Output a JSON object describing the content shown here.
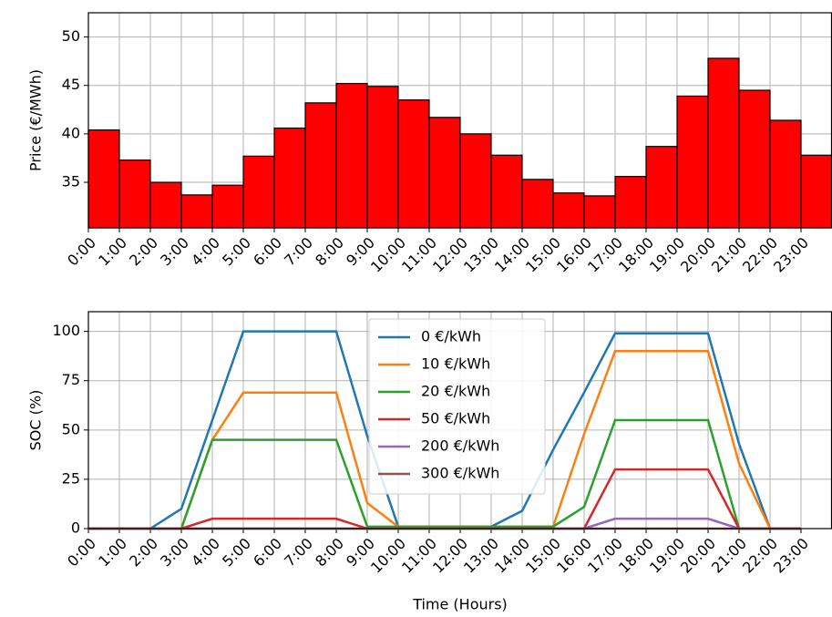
{
  "chart_data": [
    {
      "type": "bar",
      "ylabel": "Price (€/MWh)",
      "categories": [
        "0:00",
        "1:00",
        "2:00",
        "3:00",
        "4:00",
        "5:00",
        "6:00",
        "7:00",
        "8:00",
        "9:00",
        "10:00",
        "11:00",
        "12:00",
        "13:00",
        "14:00",
        "15:00",
        "16:00",
        "17:00",
        "18:00",
        "19:00",
        "20:00",
        "21:00",
        "22:00",
        "23:00"
      ],
      "values": [
        40.4,
        37.3,
        35.0,
        33.7,
        34.7,
        37.7,
        40.6,
        43.2,
        45.2,
        44.9,
        43.5,
        41.7,
        40.0,
        37.8,
        35.3,
        33.9,
        33.6,
        35.6,
        38.7,
        43.9,
        47.8,
        44.5,
        41.4,
        37.8
      ],
      "color": "#ff0000",
      "ylim": [
        30.3,
        52.5
      ],
      "yticks": [
        35,
        40,
        45,
        50
      ],
      "grid": true
    },
    {
      "type": "line",
      "xlabel": "Time (Hours)",
      "ylabel": "SOC (%)",
      "categories": [
        "0:00",
        "1:00",
        "2:00",
        "3:00",
        "4:00",
        "5:00",
        "6:00",
        "7:00",
        "8:00",
        "9:00",
        "10:00",
        "11:00",
        "12:00",
        "13:00",
        "14:00",
        "15:00",
        "16:00",
        "17:00",
        "18:00",
        "19:00",
        "20:00",
        "21:00",
        "22:00",
        "23:00"
      ],
      "series": [
        {
          "name": "0 €/kWh",
          "color": "#1f77b4",
          "values": [
            0,
            0,
            0,
            10,
            55,
            100,
            100,
            100,
            100,
            47,
            1,
            1,
            1,
            1,
            9,
            40,
            69,
            99,
            99,
            99,
            99,
            43,
            0,
            0
          ]
        },
        {
          "name": "10 €/kWh",
          "color": "#ff7f0e",
          "values": [
            0,
            0,
            0,
            0,
            45,
            69,
            69,
            69,
            69,
            13,
            1,
            1,
            1,
            1,
            1,
            1,
            48,
            90,
            90,
            90,
            90,
            33,
            0,
            0
          ]
        },
        {
          "name": "20 €/kWh",
          "color": "#2ca02c",
          "values": [
            0,
            0,
            0,
            0,
            45,
            45,
            45,
            45,
            45,
            1,
            1,
            1,
            1,
            1,
            1,
            1,
            11,
            55,
            55,
            55,
            55,
            0,
            0,
            0
          ]
        },
        {
          "name": "50 €/kWh",
          "color": "#d62728",
          "values": [
            0,
            0,
            0,
            0,
            5,
            5,
            5,
            5,
            5,
            0,
            0,
            0,
            0,
            0,
            0,
            0,
            0,
            30,
            30,
            30,
            30,
            0,
            0,
            0
          ]
        },
        {
          "name": "200 €/kWh",
          "color": "#9467bd",
          "values": [
            0,
            0,
            0,
            0,
            0,
            0,
            0,
            0,
            0,
            0,
            0,
            0,
            0,
            0,
            0,
            0,
            0,
            5,
            5,
            5,
            5,
            0,
            0,
            0
          ]
        },
        {
          "name": "300 €/kWh",
          "color": "#8c564b",
          "values": [
            0,
            0,
            0,
            0,
            0,
            0,
            0,
            0,
            0,
            0,
            0,
            0,
            0,
            0,
            0,
            0,
            0,
            0,
            0,
            0,
            0,
            0,
            0,
            0
          ]
        }
      ],
      "ylim": [
        0,
        110
      ],
      "yticks": [
        0,
        25,
        50,
        75,
        100
      ],
      "grid": true,
      "legend": "top-center"
    }
  ]
}
